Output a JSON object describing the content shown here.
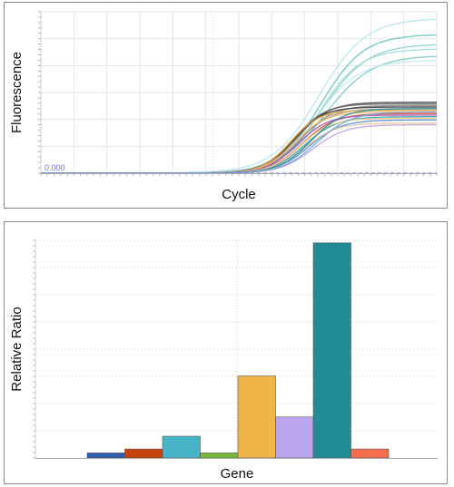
{
  "chart_data": [
    {
      "type": "line",
      "xlabel": "Cycle",
      "ylabel": "Fluorescence",
      "threshold": {
        "label": "0.000",
        "value": 0,
        "color": "#7b83e0"
      },
      "x_range": [
        1,
        40
      ],
      "y_range": [
        0,
        1
      ],
      "grid": true,
      "series": [
        {
          "plateau": 0.96,
          "midpoint": 28.4,
          "slope": 2.3,
          "color": "#b6e6ec"
        },
        {
          "plateau": 0.86,
          "midpoint": 28.6,
          "slope": 2.1,
          "color": "#6cc6c0"
        },
        {
          "plateau": 0.8,
          "midpoint": 28.8,
          "slope": 2.2,
          "color": "#8fd3cf"
        },
        {
          "plateau": 0.77,
          "midpoint": 28.5,
          "slope": 2.0,
          "color": "#a3dcd8"
        },
        {
          "plateau": 0.73,
          "midpoint": 29.0,
          "slope": 2.3,
          "color": "#7ccbc6"
        },
        {
          "plateau": 0.7,
          "midpoint": 28.2,
          "slope": 2.1,
          "color": "#c3ebee"
        },
        {
          "plateau": 0.44,
          "midpoint": 26.2,
          "slope": 1.6,
          "color": "#4a4a4a"
        },
        {
          "plateau": 0.43,
          "midpoint": 26.0,
          "slope": 1.5,
          "color": "#666666"
        },
        {
          "plateau": 0.42,
          "midpoint": 26.6,
          "slope": 1.6,
          "color": "#8a8a8a"
        },
        {
          "plateau": 0.41,
          "midpoint": 25.8,
          "slope": 1.5,
          "color": "#3d3d3d"
        },
        {
          "plateau": 0.4,
          "midpoint": 26.4,
          "slope": 1.6,
          "color": "#9a9a9a"
        },
        {
          "plateau": 0.39,
          "midpoint": 25.6,
          "slope": 1.4,
          "color": "#e8a33a"
        },
        {
          "plateau": 0.38,
          "midpoint": 26.0,
          "slope": 1.5,
          "color": "#f0bb6a"
        },
        {
          "plateau": 0.37,
          "midpoint": 26.8,
          "slope": 1.6,
          "color": "#d94a3a"
        },
        {
          "plateau": 0.36,
          "midpoint": 26.3,
          "slope": 1.5,
          "color": "#a85ab0"
        },
        {
          "plateau": 0.35,
          "midpoint": 27.0,
          "slope": 1.6,
          "color": "#3aa0b0"
        },
        {
          "plateau": 0.34,
          "midpoint": 26.6,
          "slope": 1.5,
          "color": "#f4d28a"
        },
        {
          "plateau": 0.33,
          "midpoint": 27.4,
          "slope": 1.6,
          "color": "#5b8fd6"
        },
        {
          "plateau": 0.31,
          "midpoint": 27.0,
          "slope": 1.5,
          "color": "#e7c9a0"
        },
        {
          "plateau": 0.3,
          "midpoint": 27.8,
          "slope": 1.6,
          "color": "#c2a3d9"
        },
        {
          "plateau": 0.4,
          "midpoint": 27.6,
          "slope": 1.6,
          "color": "#2f8f9a"
        },
        {
          "plateau": 0.38,
          "midpoint": 28.2,
          "slope": 1.7,
          "color": "#7aa7d9"
        }
      ]
    },
    {
      "type": "bar",
      "xlabel": "Gene",
      "ylabel": "Relative Ratio",
      "y_range": [
        0,
        8.5
      ],
      "grid": true,
      "values": [
        0.2,
        0.35,
        0.85,
        0.2,
        3.2,
        1.6,
        8.4,
        0.35
      ],
      "colors": [
        "#2f5fad",
        "#c8420e",
        "#47b4c8",
        "#79b93a",
        "#eeb548",
        "#bca6ef",
        "#218c96",
        "#f46e4b"
      ]
    }
  ]
}
